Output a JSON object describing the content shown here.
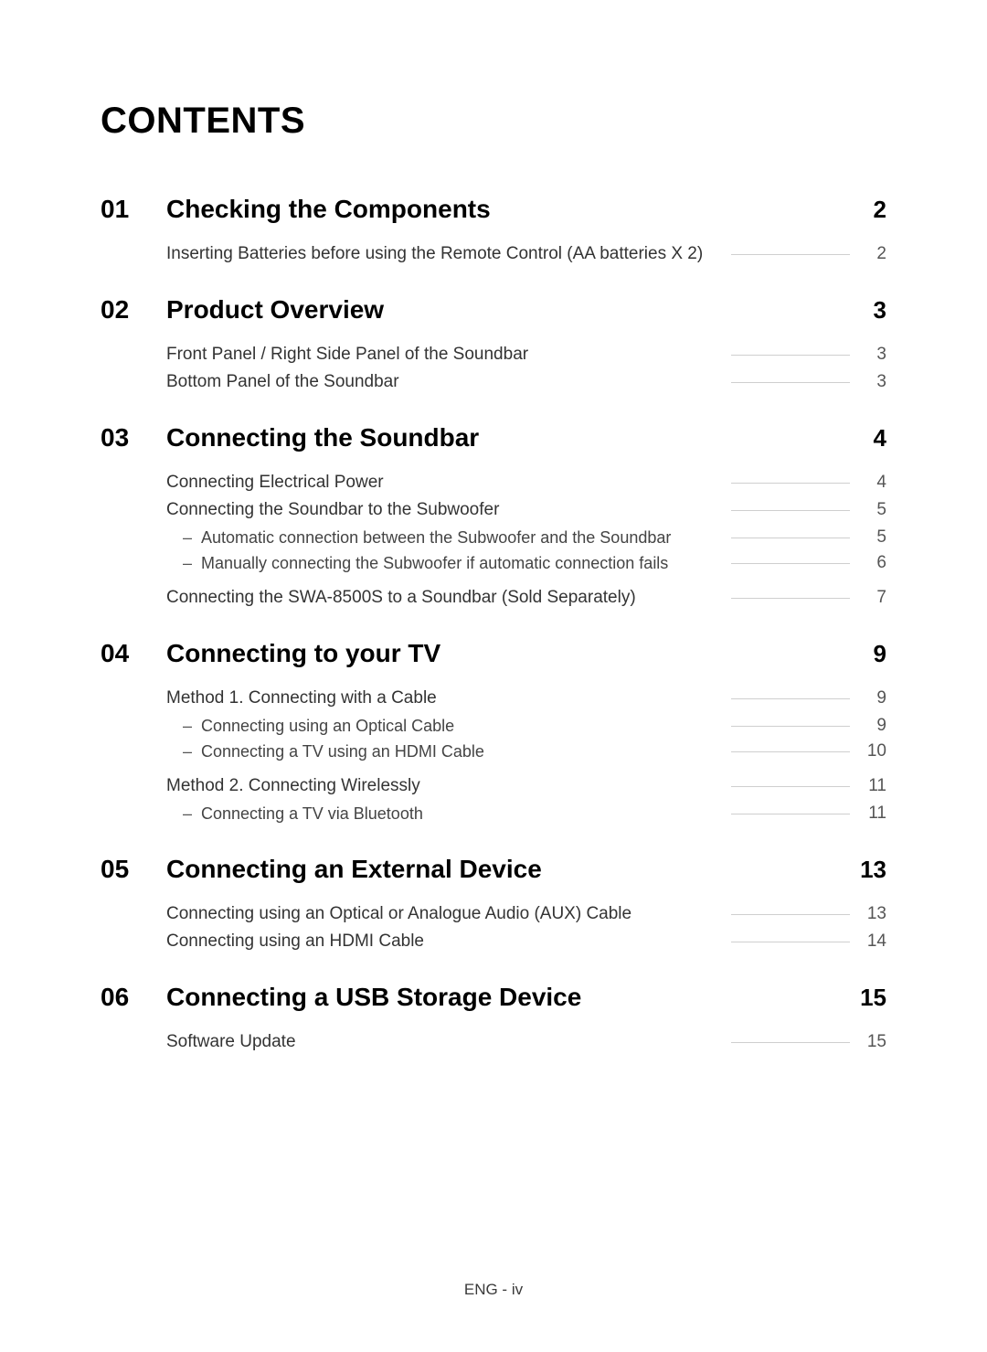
{
  "page_title": "CONTENTS",
  "footer": "ENG - iv",
  "colors": {
    "text_primary": "#000000",
    "text_secondary": "#333333",
    "text_muted": "#555555",
    "leader": "#cfcfcf",
    "background": "#ffffff"
  },
  "typography": {
    "title_fontsize": 40,
    "section_fontsize": 28,
    "entry_fontsize": 19,
    "subentry_fontsize": 18,
    "footer_fontsize": 17,
    "bold_weight": 700,
    "normal_weight": 400
  },
  "sections": [
    {
      "num": "01",
      "title": "Checking the Components",
      "page": "2",
      "entries": [
        {
          "title": "Inserting Batteries before using the Remote Control (AA batteries X 2)",
          "page": "2",
          "sub": []
        }
      ]
    },
    {
      "num": "02",
      "title": "Product Overview",
      "page": "3",
      "entries": [
        {
          "title": "Front Panel / Right Side Panel of the Soundbar",
          "page": "3",
          "sub": []
        },
        {
          "title": "Bottom Panel of the Soundbar",
          "page": "3",
          "sub": []
        }
      ]
    },
    {
      "num": "03",
      "title": "Connecting the Soundbar",
      "page": "4",
      "entries": [
        {
          "title": "Connecting Electrical Power",
          "page": "4",
          "sub": []
        },
        {
          "title": "Connecting the Soundbar to the Subwoofer",
          "page": "5",
          "sub": [
            {
              "title": "Automatic connection between the Subwoofer and the Soundbar",
              "page": "5"
            },
            {
              "title": "Manually connecting the Subwoofer if automatic connection fails",
              "page": "6"
            }
          ]
        },
        {
          "title": "Connecting the SWA-8500S to a Soundbar (Sold Separately)",
          "page": "7",
          "sub": []
        }
      ]
    },
    {
      "num": "04",
      "title": "Connecting to your TV",
      "page": "9",
      "entries": [
        {
          "title": "Method 1. Connecting with a Cable",
          "page": "9",
          "sub": [
            {
              "title": "Connecting using an Optical Cable",
              "page": "9"
            },
            {
              "title": "Connecting a TV using an HDMI Cable",
              "page": "10"
            }
          ]
        },
        {
          "title": "Method 2. Connecting Wirelessly",
          "page": "11",
          "sub": [
            {
              "title": "Connecting a TV via Bluetooth",
              "page": "11"
            }
          ]
        }
      ]
    },
    {
      "num": "05",
      "title": "Connecting an External Device",
      "page": "13",
      "entries": [
        {
          "title": "Connecting using an Optical or Analogue Audio (AUX) Cable",
          "page": "13",
          "sub": []
        },
        {
          "title": "Connecting using an HDMI Cable",
          "page": "14",
          "sub": []
        }
      ]
    },
    {
      "num": "06",
      "title": "Connecting a USB Storage Device",
      "page": "15",
      "entries": [
        {
          "title": "Software Update",
          "page": "15",
          "sub": []
        }
      ]
    }
  ]
}
